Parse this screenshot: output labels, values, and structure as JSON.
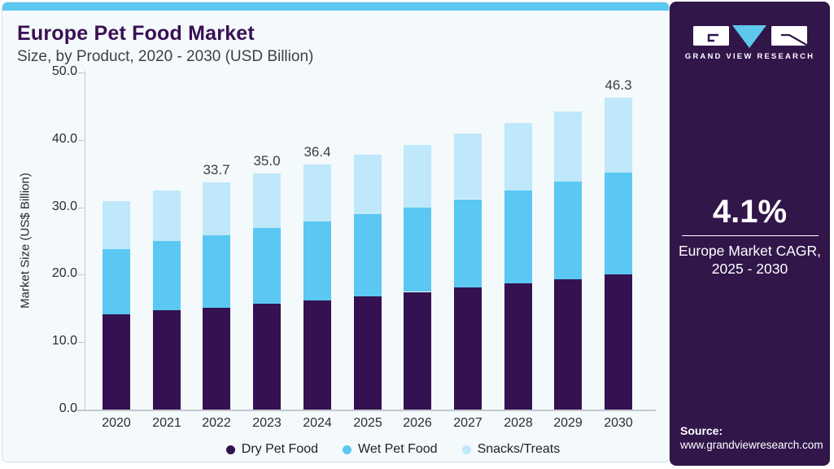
{
  "header": {
    "title": "Europe Pet Food Market",
    "subtitle": "Size, by Product, 2020 - 2030 (USD Billion)"
  },
  "chart_data": {
    "type": "bar",
    "stacked": true,
    "title": "Europe Pet Food Market Size, by Product, 2020 - 2030 (USD Billion)",
    "xlabel": "",
    "ylabel": "Market Size (US$ Billion)",
    "ylim": [
      0,
      50
    ],
    "ytick_labels": [
      "0.0",
      "10.0",
      "20.0",
      "30.0",
      "40.0",
      "50.0"
    ],
    "grid": false,
    "legend_position": "bottom",
    "categories": [
      "2020",
      "2021",
      "2022",
      "2023",
      "2024",
      "2025",
      "2026",
      "2027",
      "2028",
      "2029",
      "2030"
    ],
    "series": [
      {
        "name": "Dry Pet Food",
        "color": "#341151",
        "values": [
          14.1,
          14.7,
          15.2,
          15.7,
          16.2,
          16.8,
          17.4,
          18.1,
          18.7,
          19.3,
          20.1
        ]
      },
      {
        "name": "Wet Pet Food",
        "color": "#5ac8f2",
        "values": [
          9.7,
          10.3,
          10.7,
          11.2,
          11.7,
          12.2,
          12.5,
          13.1,
          13.8,
          14.5,
          15.1
        ]
      },
      {
        "name": "Snacks/Treats",
        "color": "#bfe8fa",
        "values": [
          7.1,
          7.5,
          7.8,
          8.1,
          8.5,
          8.8,
          9.3,
          9.7,
          10.0,
          10.4,
          11.1
        ]
      }
    ],
    "totals": [
      30.9,
      32.5,
      33.7,
      35.0,
      36.4,
      37.8,
      39.2,
      40.9,
      42.5,
      44.2,
      46.3
    ],
    "total_labels": [
      "",
      "",
      "33.7",
      "35.0",
      "36.4",
      "",
      "",
      "",
      "",
      "",
      "46.3"
    ]
  },
  "sidebar": {
    "brand": "GRAND VIEW RESEARCH",
    "cagr": {
      "value": "4.1%",
      "label_line1": "Europe Market CAGR,",
      "label_line2": "2025 - 2030"
    },
    "source": {
      "label": "Source:",
      "url": "www.grandviewresearch.com"
    }
  },
  "colors": {
    "topbar": "#5ac7f0",
    "card_background": "#f4f9fc",
    "sidebar_background": "#31164a",
    "title_text": "#3a1053",
    "logo_triangle": "#5ec7ec",
    "dry": "#341151",
    "wet": "#5ac8f2",
    "snacks": "#bfe8fa"
  }
}
